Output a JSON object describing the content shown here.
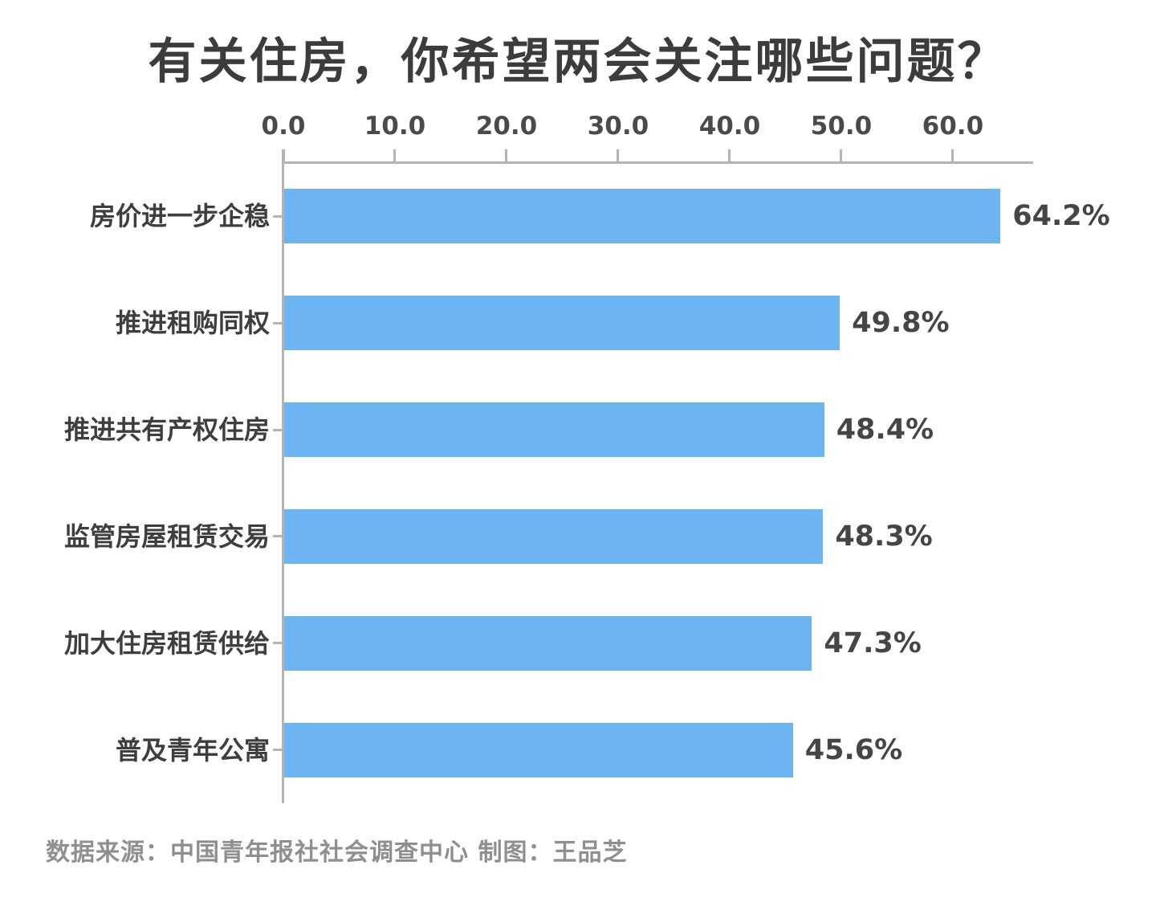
{
  "title": "有关住房，你希望两会关注哪些问题？",
  "footer": {
    "source_label": "数据来源：中国青年报社社会调查中心 制图：王品芝"
  },
  "colors": {
    "bar": "#6db4f2",
    "axis": "#b4b4b4",
    "title_text": "#3c3c3c",
    "label_text": "#3e3e3e",
    "value_text": "#454545",
    "footer_text": "#8f8f8f",
    "background": "#ffffff"
  },
  "chart_data": {
    "type": "bar",
    "orientation": "horizontal",
    "title": "有关住房，你希望两会关注哪些问题？",
    "categories": [
      "房价进一步企稳",
      "推进租购同权",
      "推进共有产权住房",
      "监管房屋租赁交易",
      "加大住房租赁供给",
      "普及青年公寓"
    ],
    "values": [
      64.2,
      49.8,
      48.4,
      48.3,
      47.3,
      45.6
    ],
    "value_labels": [
      "64.2%",
      "49.8%",
      "48.4%",
      "48.3%",
      "47.3%",
      "45.6%"
    ],
    "x_ticks": [
      0,
      10,
      20,
      30,
      40,
      50,
      60
    ],
    "x_tick_labels": [
      "0.0",
      "10.0",
      "20.0",
      "30.0",
      "40.0",
      "50.0",
      "60.0"
    ],
    "xlim": [
      0,
      67.2
    ],
    "xlabel": "",
    "ylabel": "",
    "grid": false,
    "legend": false,
    "unit": "%"
  }
}
